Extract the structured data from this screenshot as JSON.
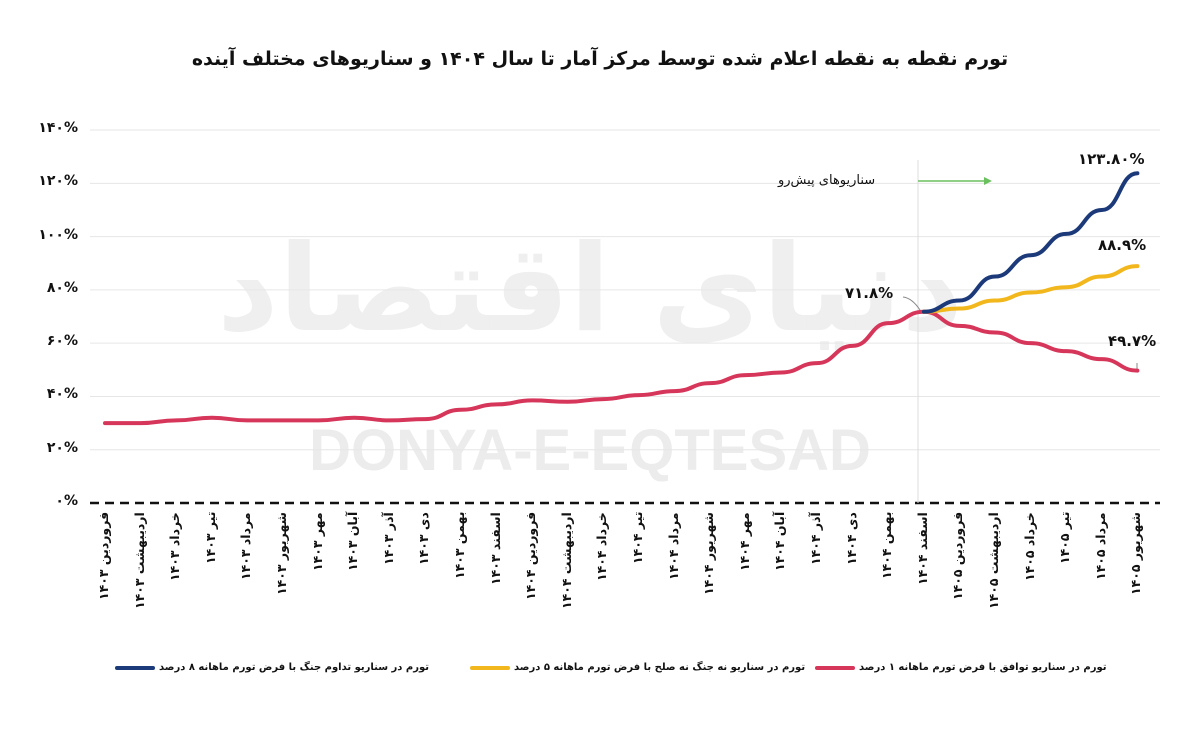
{
  "title": "تورم نقطه به نقطه اعلام شده توسط مرکز آمار تا سال ۱۴۰۴ و سناریوهای مختلف آینده",
  "watermark": {
    "fa": "دنیای اقتصاد",
    "en": "DONYA-E-EQTESAD"
  },
  "annotations": {
    "scenario_label": "سناریوهای پیش‌رو",
    "current": "۷۱.۸%",
    "blue_end": "۱۲۳.۸۰%",
    "yellow_end": "۸۸.۹%",
    "red_end": "۴۹.۷%"
  },
  "y_ticks": [
    "۱۴۰%",
    "۱۲۰%",
    "۱۰۰%",
    "۸۰%",
    "۶۰%",
    "۴۰%",
    "۲۰%",
    "۰%"
  ],
  "legend": [
    {
      "label": "تورم در سناریو تداوم جنگ با فرض تورم ماهانه ۸ درصد",
      "color": "#1c3a7a"
    },
    {
      "label": "تورم در سناریو نه جنگ نه صلح با فرض تورم ماهانه ۵ درصد",
      "color": "#f2b71c"
    },
    {
      "label": "تورم در سناریو توافق با فرض تورم ماهانه ۱ درصد",
      "color": "#d6365a"
    }
  ],
  "chart_data": {
    "type": "line",
    "title": "تورم نقطه به نقطه اعلام شده توسط مرکز آمار تا سال ۱۴۰۴ و سناریوهای مختلف آینده",
    "xlabel": "",
    "ylabel": "",
    "ylim": [
      0,
      140
    ],
    "grid": true,
    "legend_position": "bottom",
    "categories": [
      "فروردین ۱۴۰۳",
      "اردیبهشت ۱۴۰۳",
      "خرداد ۱۴۰۳",
      "تیر ۱۴۰۳",
      "مرداد ۱۴۰۳",
      "شهریور ۱۴۰۳",
      "مهر ۱۴۰۳",
      "آبان ۱۴۰۳",
      "آذر ۱۴۰۳",
      "دی ۱۴۰۳",
      "بهمن ۱۴۰۳",
      "اسفند ۱۴۰۳",
      "فروردین ۱۴۰۴",
      "اردیبهشت ۱۴۰۴",
      "خرداد ۱۴۰۴",
      "تیر ۱۴۰۴",
      "مرداد ۱۴۰۴",
      "شهریور ۱۴۰۴",
      "مهر ۱۴۰۴",
      "آبان ۱۴۰۴",
      "آذر ۱۴۰۴",
      "دی ۱۴۰۴",
      "بهمن ۱۴۰۴",
      "اسفند ۱۴۰۴",
      "فروردین ۱۴۰۵",
      "اردیبهشت ۱۴۰۵",
      "خرداد ۱۴۰۵",
      "تیر ۱۴۰۵",
      "مرداد ۱۴۰۵",
      "شهریور ۱۴۰۵"
    ],
    "series": [
      {
        "name": "تورم در سناریو تداوم جنگ با فرض تورم ماهانه ۸ درصد",
        "color": "#1c3a7a",
        "values": [
          null,
          null,
          null,
          null,
          null,
          null,
          null,
          null,
          null,
          null,
          null,
          null,
          null,
          null,
          null,
          null,
          null,
          null,
          null,
          null,
          null,
          null,
          null,
          71.8,
          76,
          85,
          93,
          101,
          110,
          123.8
        ]
      },
      {
        "name": "تورم در سناریو نه جنگ نه صلح با فرض تورم ماهانه ۵ درصد",
        "color": "#f2b71c",
        "values": [
          null,
          null,
          null,
          null,
          null,
          null,
          null,
          null,
          null,
          null,
          null,
          null,
          null,
          null,
          null,
          null,
          null,
          null,
          null,
          null,
          null,
          null,
          null,
          71.8,
          73,
          76,
          79,
          81,
          85,
          88.9
        ]
      },
      {
        "name": "تورم در سناریو توافق با فرض تورم ماهانه ۱ درصد",
        "color": "#d6365a",
        "values": [
          30,
          30,
          31,
          32,
          31,
          31,
          31,
          32,
          31,
          31.5,
          35,
          37,
          38.5,
          38,
          39,
          40.5,
          42,
          45,
          48,
          49,
          52.5,
          59,
          67.5,
          71.8,
          66.5,
          64,
          60,
          57,
          54,
          49.7
        ]
      }
    ],
    "annotations": [
      {
        "text": "۷۱.۸%",
        "at": "اسفند ۱۴۰۴"
      },
      {
        "text": "۱۲۳.۸۰%",
        "at": "شهریور ۱۴۰۵"
      },
      {
        "text": "۸۸.۹%",
        "at": "شهریور ۱۴۰۵"
      },
      {
        "text": "۴۹.۷%",
        "at": "شهریور ۱۴۰۵"
      },
      {
        "text": "سناریوهای پیش‌رو",
        "at": "اسفند ۱۴۰۴"
      }
    ]
  }
}
